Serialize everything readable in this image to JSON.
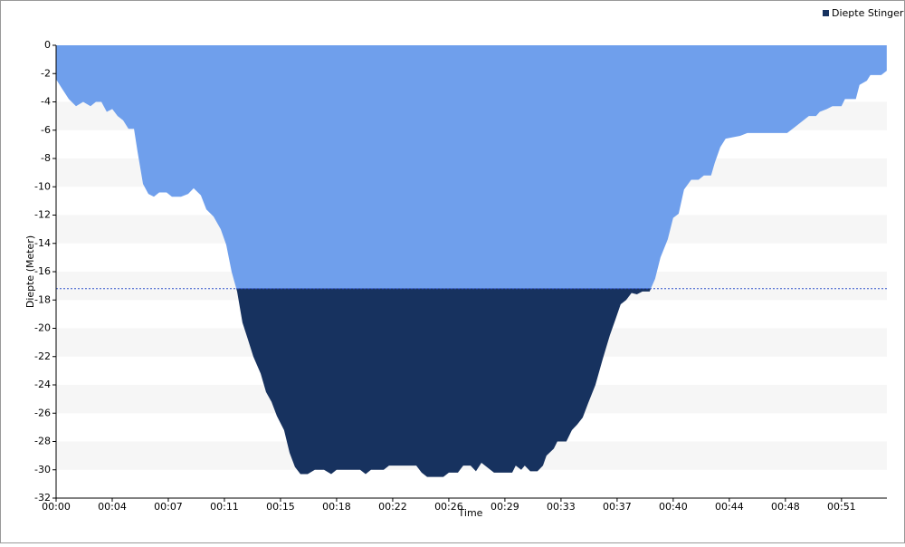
{
  "chart_data": {
    "type": "area",
    "x_label": "Time",
    "y_label": "Diepte (Meter)",
    "x": [
      0,
      0.35,
      0.83,
      1.3,
      1.77,
      2.25,
      2.6,
      2.96,
      3.31,
      3.67,
      4.02,
      4.38,
      4.73,
      5.09,
      5.32,
      5.68,
      6.03,
      6.39,
      6.74,
      7.22,
      7.57,
      8.16,
      8.63,
      8.99,
      9.46,
      9.82,
      10.29,
      10.76,
      11.12,
      11.47,
      11.83,
      12.18,
      12.54,
      12.89,
      13.37,
      13.72,
      14.08,
      14.43,
      14.9,
      15.26,
      15.61,
      15.97,
      16.44,
      16.91,
      17.51,
      17.98,
      18.33,
      19.87,
      20.23,
      20.58,
      21.41,
      21.76,
      23.54,
      23.89,
      24.25,
      25.31,
      25.67,
      26.26,
      26.61,
      27.09,
      27.44,
      27.8,
      28.62,
      29.81,
      30.04,
      30.4,
      30.63,
      30.99,
      31.46,
      31.82,
      32.05,
      32.53,
      32.76,
      33.35,
      33.71,
      34.06,
      34.42,
      34.77,
      35.25,
      35.72,
      36.19,
      36.55,
      36.9,
      37.26,
      37.61,
      37.96,
      38.32,
      38.79,
      39.15,
      39.5,
      39.98,
      40.33,
      40.69,
      41.04,
      41.51,
      41.99,
      42.34,
      42.81,
      43.05,
      43.41,
      43.76,
      44.71,
      45.18,
      47.78,
      48.26,
      48.73,
      49.2,
      49.67,
      49.91,
      50.38,
      50.74,
      51.33,
      51.56,
      52.27,
      52.51,
      52.99,
      53.22,
      53.93,
      54.29
    ],
    "series": [
      {
        "name": "Diepte Stinger",
        "color": "#17325f",
        "upper_color": "#6f9fec",
        "values": [
          -2.4,
          -3,
          -3.8,
          -4.3,
          -4,
          -4.3,
          -4,
          -4,
          -4.7,
          -4.5,
          -5,
          -5.3,
          -5.9,
          -5.9,
          -7.5,
          -9.8,
          -10.5,
          -10.7,
          -10.4,
          -10.4,
          -10.7,
          -10.7,
          -10.5,
          -10.1,
          -10.6,
          -11.6,
          -12.1,
          -13,
          -14.1,
          -16,
          -17.4,
          -19.6,
          -20.8,
          -22,
          -23.2,
          -24.5,
          -25.2,
          -26.2,
          -27.2,
          -28.8,
          -29.8,
          -30.3,
          -30.3,
          -30,
          -30,
          -30.3,
          -30,
          -30,
          -30.3,
          -30,
          -30,
          -29.7,
          -29.7,
          -30.2,
          -30.5,
          -30.5,
          -30.2,
          -30.2,
          -29.7,
          -29.7,
          -30.1,
          -29.5,
          -30.2,
          -30.2,
          -29.7,
          -30,
          -29.7,
          -30.1,
          -30.1,
          -29.7,
          -29,
          -28.5,
          -28,
          -28,
          -27.2,
          -26.8,
          -26.3,
          -25.3,
          -24,
          -22.2,
          -20.5,
          -19.4,
          -18.3,
          -18,
          -17.5,
          -17.6,
          -17.4,
          -17.4,
          -16.5,
          -15,
          -13.7,
          -12.2,
          -11.9,
          -10.2,
          -9.5,
          -9.5,
          -9.2,
          -9.2,
          -8.3,
          -7.2,
          -6.6,
          -6.4,
          -6.2,
          -6.2,
          -5.8,
          -5.4,
          -5,
          -5,
          -4.7,
          -4.5,
          -4.3,
          -4.3,
          -3.8,
          -3.8,
          -2.8,
          -2.5,
          -2.1,
          -2.1,
          -1.8
        ]
      }
    ],
    "threshold": -17.2,
    "threshold_color": "#3355cc",
    "xlim": [
      0,
      54.3
    ],
    "xticks": [
      {
        "value": 0,
        "label": "00:00"
      },
      {
        "value": 3.667,
        "label": "00:04"
      },
      {
        "value": 7.333,
        "label": "00:07"
      },
      {
        "value": 11,
        "label": "00:11"
      },
      {
        "value": 14.667,
        "label": "00:15"
      },
      {
        "value": 18.333,
        "label": "00:18"
      },
      {
        "value": 22,
        "label": "00:22"
      },
      {
        "value": 25.667,
        "label": "00:26"
      },
      {
        "value": 29.333,
        "label": "00:29"
      },
      {
        "value": 33,
        "label": "00:33"
      },
      {
        "value": 36.667,
        "label": "00:37"
      },
      {
        "value": 40.333,
        "label": "00:40"
      },
      {
        "value": 44,
        "label": "00:44"
      },
      {
        "value": 47.667,
        "label": "00:48"
      },
      {
        "value": 51.333,
        "label": "00:51"
      }
    ],
    "ylim": [
      -32,
      0
    ],
    "yticks": [
      0,
      -2,
      -4,
      -6,
      -8,
      -10,
      -12,
      -14,
      -16,
      -18,
      -20,
      -22,
      -24,
      -26,
      -28,
      -30,
      -32
    ],
    "grid": "striped",
    "legend": "top-right"
  }
}
